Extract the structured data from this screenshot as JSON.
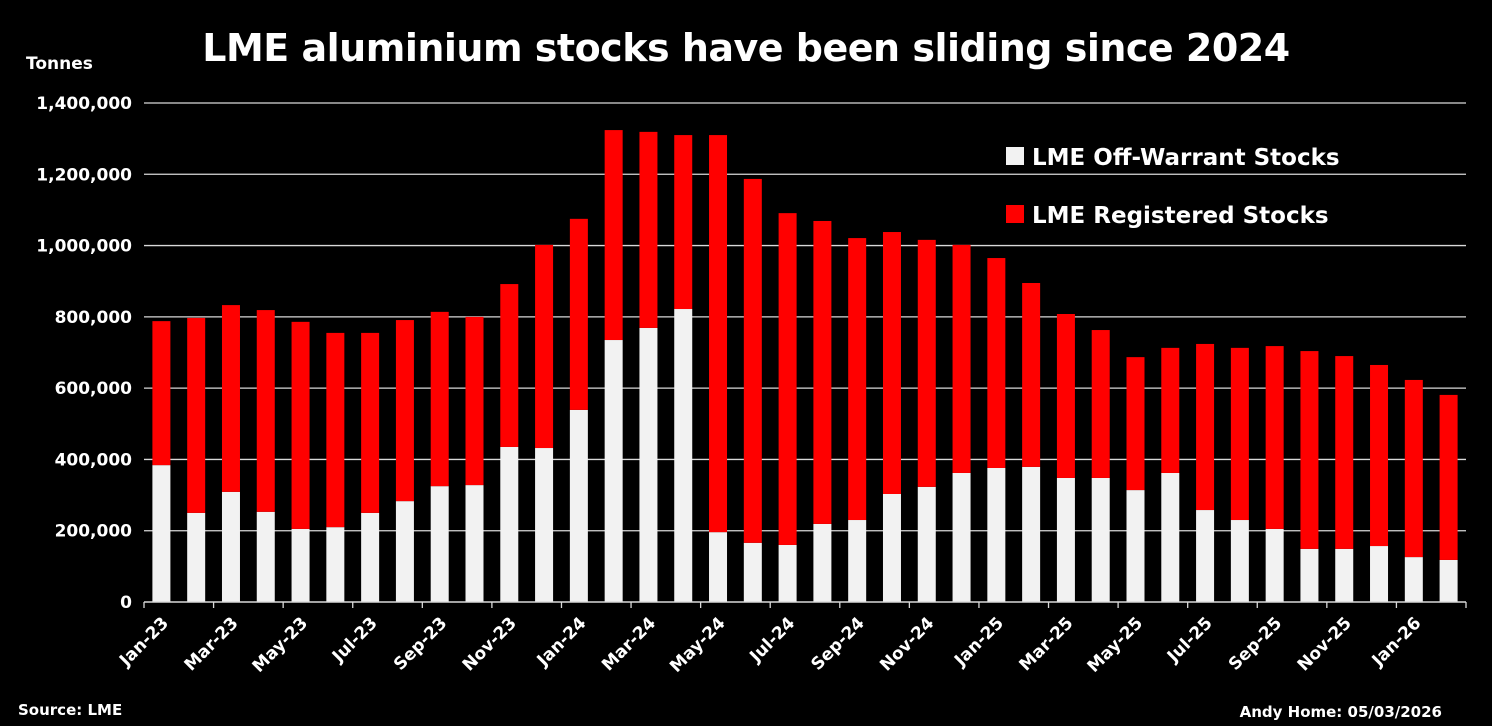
{
  "chart_data": {
    "type": "bar",
    "stacked": true,
    "title": "LME aluminium stocks have been sliding since 2024",
    "ylabel": "Tonnes",
    "xlabel": "",
    "ylim": [
      0,
      1400000
    ],
    "yticks": [
      "0",
      "200,000",
      "400,000",
      "600,000",
      "800,000",
      "1,000,000",
      "1,200,000",
      "1,400,000"
    ],
    "grid": true,
    "legend_position": "top-right",
    "categories": [
      "Jan-23",
      "Feb-23",
      "Mar-23",
      "Apr-23",
      "May-23",
      "Jun-23",
      "Jul-23",
      "Aug-23",
      "Sep-23",
      "Oct-23",
      "Nov-23",
      "Dec-23",
      "Jan-24",
      "Feb-24",
      "Mar-24",
      "Apr-24",
      "May-24",
      "Jun-24",
      "Jul-24",
      "Aug-24",
      "Sep-24",
      "Oct-24",
      "Nov-24",
      "Dec-24",
      "Jan-25",
      "Feb-25",
      "Mar-25",
      "Apr-25",
      "May-25",
      "Jun-25",
      "Jul-25",
      "Aug-25",
      "Sep-25",
      "Oct-25",
      "Nov-25",
      "Dec-25",
      "Jan-26",
      "Feb-26"
    ],
    "series": [
      {
        "name": "LME Off-Warrant Stocks",
        "color": "#f2f2f2",
        "values": [
          384000,
          250000,
          309000,
          253000,
          205000,
          210000,
          250000,
          283000,
          325000,
          328000,
          435000,
          432000,
          539000,
          735000,
          769000,
          822000,
          196000,
          166000,
          160000,
          219000,
          230000,
          303000,
          323000,
          362000,
          376000,
          379000,
          348000,
          348000,
          314000,
          362000,
          258000,
          230000,
          205000,
          149000,
          149000,
          157000,
          126000,
          118000
        ]
      },
      {
        "name": "LME Registered Stocks",
        "color": "#ff0000",
        "values": [
          404000,
          547000,
          524000,
          566000,
          581000,
          545000,
          505000,
          508000,
          489000,
          472000,
          457000,
          570000,
          536000,
          589000,
          550000,
          488000,
          1114000,
          1021000,
          931000,
          850000,
          791000,
          735000,
          693000,
          640000,
          589000,
          516000,
          460000,
          415000,
          373000,
          351000,
          466000,
          483000,
          513000,
          555000,
          541000,
          508000,
          497000,
          463000
        ]
      }
    ]
  },
  "footer": {
    "source": "Source: LME",
    "credit": "Andy Home: 05/03/2026"
  }
}
